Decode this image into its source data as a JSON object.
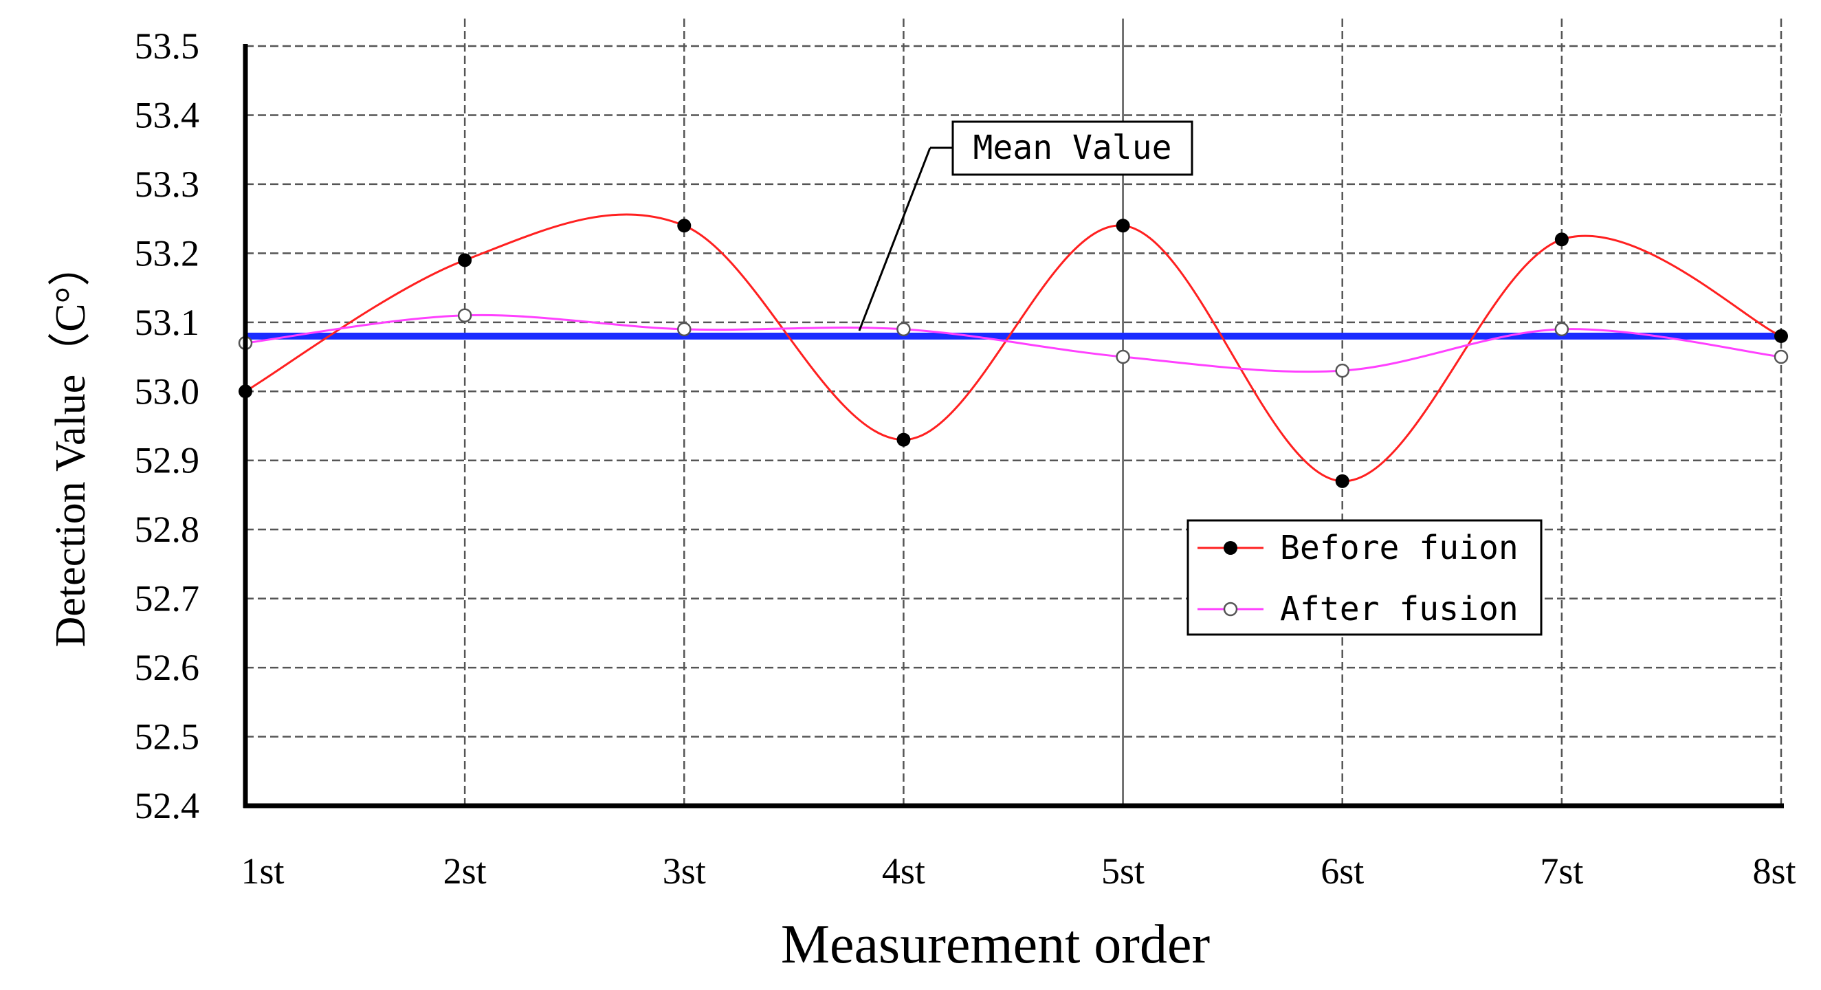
{
  "chart_data": {
    "type": "line",
    "title": "",
    "xlabel": "Measurement order",
    "ylabel": "Detection Value（C°）",
    "categories": [
      "1st",
      "2st",
      "3st",
      "4st",
      "5st",
      "6st",
      "7st",
      "8st"
    ],
    "yticks": [
      "53.5",
      "53.4",
      "53.3",
      "53.2",
      "53.1",
      "53.0",
      "52.9",
      "52.8",
      "52.7",
      "52.6",
      "52.5",
      "52.4"
    ],
    "ylim": [
      52.4,
      53.5
    ],
    "grid": true,
    "legend_position": "lower-right",
    "series": [
      {
        "name": "Before fuion",
        "color": "#ff2020",
        "marker": "filled-circle",
        "values": [
          53.0,
          53.19,
          53.24,
          52.93,
          53.24,
          52.87,
          53.22,
          53.08
        ]
      },
      {
        "name": "After fusion",
        "color": "#ff40ff",
        "marker": "open-circle",
        "values": [
          53.07,
          53.11,
          53.09,
          53.09,
          53.05,
          53.03,
          53.09,
          53.05
        ]
      }
    ],
    "mean_line": {
      "value": 53.08,
      "color": "#1a2cff",
      "label": "Mean Value"
    }
  }
}
